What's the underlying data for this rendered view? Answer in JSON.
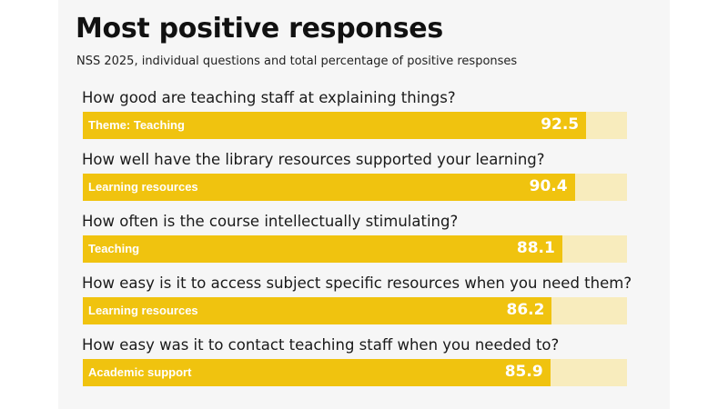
{
  "header": {
    "title": "Most positive responses",
    "subtitle": "NSS 2025, individual questions and total percentage of positive responses"
  },
  "colors": {
    "bar_fill": "#f0c30f",
    "bar_track": "#f8ecbd",
    "card_background": "#f6f6f6",
    "label_text": "#ffffff"
  },
  "chart_data": {
    "type": "bar",
    "orientation": "horizontal",
    "title": "Most positive responses",
    "subtitle": "NSS 2025, individual questions and total percentage of positive responses",
    "xlim": [
      0,
      100
    ],
    "grid": false,
    "legend": "none",
    "categories": [
      "How good are teaching staff at explaining things?",
      "How well have the library resources supported your learning?",
      "How often is the course intellectually stimulating?",
      "How easy is it to access subject specific resources when you need them?",
      "How easy was it to contact teaching staff when you needed to?"
    ],
    "themes": [
      "Theme: Teaching",
      "Learning resources",
      "Teaching",
      "Learning resources",
      "Academic support"
    ],
    "values": [
      92.5,
      90.4,
      88.1,
      86.2,
      85.9
    ],
    "value_labels": [
      "92.5",
      "90.4",
      "88.1",
      "86.2",
      "85.9"
    ]
  }
}
